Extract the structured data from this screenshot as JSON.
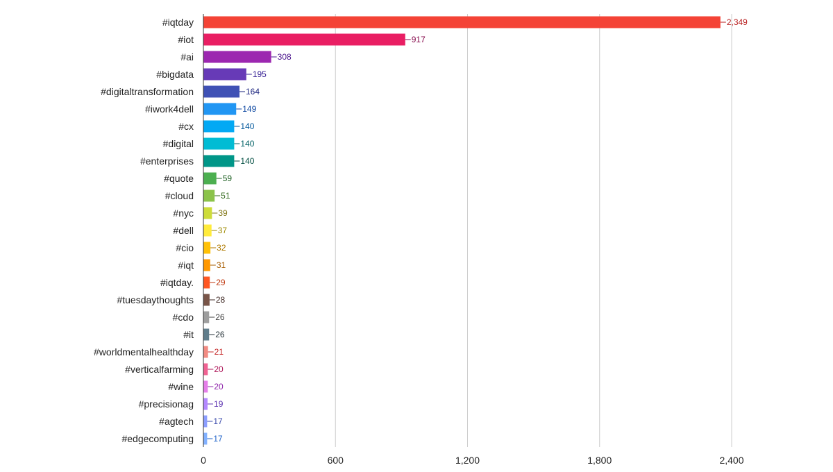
{
  "chart_data": {
    "type": "bar",
    "orientation": "horizontal",
    "title": "",
    "xlabel": "",
    "ylabel": "",
    "xlim": [
      0,
      2400
    ],
    "xticks": [
      0,
      600,
      1200,
      1800,
      2400
    ],
    "xtick_labels": [
      "0",
      "600",
      "1,200",
      "1,800",
      "2,400"
    ],
    "grid": true,
    "legend": "none",
    "categories": [
      "#iqtday",
      "#iot",
      "#ai",
      "#bigdata",
      "#digitaltransformation",
      "#iwork4dell",
      "#cx",
      "#digital",
      "#enterprises",
      "#quote",
      "#cloud",
      "#nyc",
      "#dell",
      "#cio",
      "#iqt",
      "#iqtday.",
      "#tuesdaythoughts",
      "#cdo",
      "#it",
      "#worldmentalhealthday",
      "#verticalfarming",
      "#wine",
      "#precisionag",
      "#agtech",
      "#edgecomputing"
    ],
    "values": [
      2349,
      917,
      308,
      195,
      164,
      149,
      140,
      140,
      140,
      59,
      51,
      39,
      37,
      32,
      31,
      29,
      28,
      26,
      26,
      21,
      20,
      20,
      19,
      17,
      17
    ],
    "value_labels": [
      "2,349",
      "917",
      "308",
      "195",
      "164",
      "149",
      "140",
      "140",
      "140",
      "59",
      "51",
      "39",
      "37",
      "32",
      "31",
      "29",
      "28",
      "26",
      "26",
      "21",
      "20",
      "20",
      "19",
      "17",
      "17"
    ],
    "bar_colors": [
      "#f44336",
      "#e91e63",
      "#9c27b0",
      "#673ab7",
      "#3f51b5",
      "#2196f3",
      "#03a9f4",
      "#00bcd4",
      "#009688",
      "#4caf50",
      "#8bc34a",
      "#cddc39",
      "#ffeb3b",
      "#ffc107",
      "#ff9800",
      "#ff5722",
      "#795548",
      "#9e9e9e",
      "#607d8b",
      "#f28b82",
      "#f06292",
      "#e57ee9",
      "#b388ff",
      "#8c9eff",
      "#82b1ff"
    ],
    "label_colors": [
      "#b71c1c",
      "#880e4f",
      "#4a148c",
      "#311b92",
      "#1a237e",
      "#0d47a1",
      "#01579b",
      "#006064",
      "#004d40",
      "#1b5e20",
      "#33691e",
      "#827717",
      "#9e8a00",
      "#b07a00",
      "#a65c00",
      "#bf360c",
      "#3e2723",
      "#424242",
      "#263238",
      "#c62828",
      "#ad1457",
      "#8e24aa",
      "#5e35b1",
      "#3949ab",
      "#1e62c9"
    ],
    "gridline_color": "#cccccc",
    "axis_color": "#333333"
  }
}
